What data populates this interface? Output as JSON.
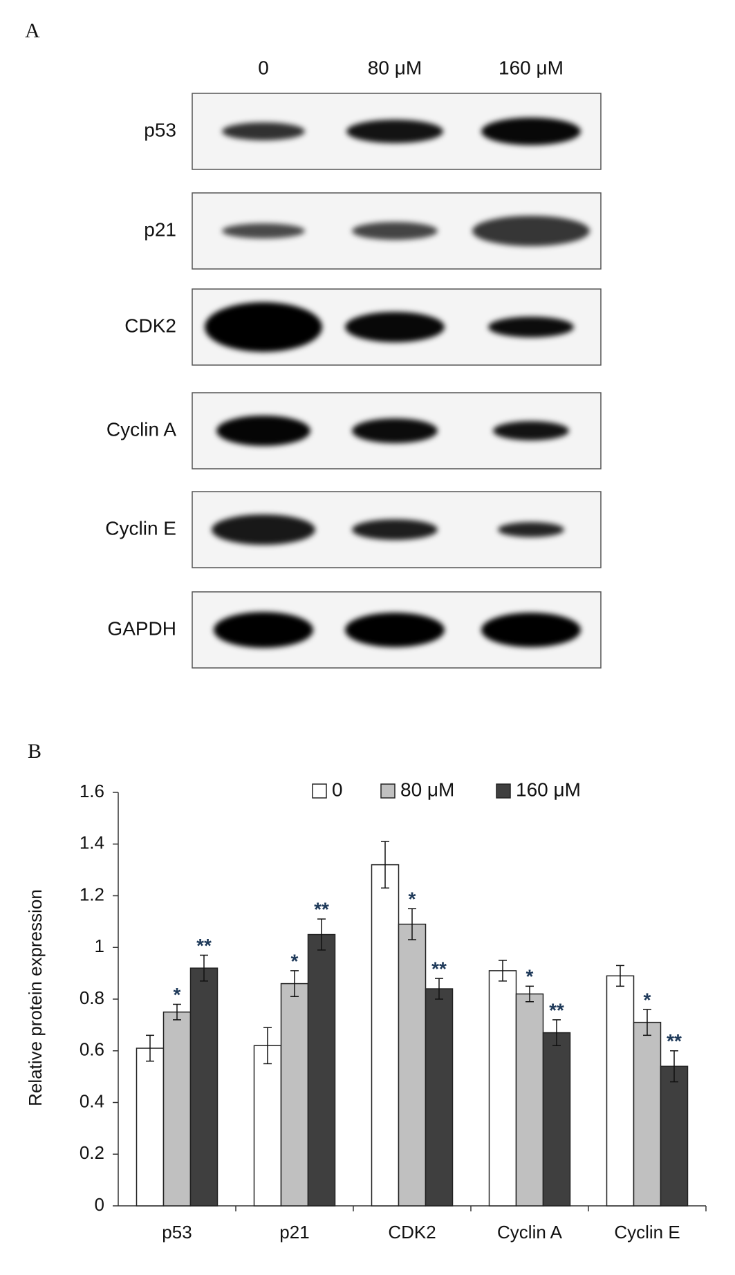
{
  "panel_labels": [
    "A",
    "B"
  ],
  "blot": {
    "lanes": [
      "0",
      "80 μM",
      "160 μM"
    ],
    "rows": [
      "p53",
      "p21",
      "CDK2",
      "Cyclin A",
      "Cyclin E",
      "GAPDH"
    ]
  },
  "chart_data": {
    "type": "bar",
    "y_label": "Relative protein expression",
    "categories": [
      "p53",
      "p21",
      "CDK2",
      "Cyclin A",
      "Cyclin E"
    ],
    "series": [
      {
        "name": "0",
        "color": "#ffffff",
        "values": [
          0.61,
          0.62,
          1.32,
          0.91,
          0.89
        ],
        "errors": [
          0.05,
          0.07,
          0.09,
          0.04,
          0.04
        ]
      },
      {
        "name": "80 μM",
        "color": "#c0c0c0",
        "values": [
          0.75,
          0.86,
          1.09,
          0.82,
          0.71
        ],
        "errors": [
          0.03,
          0.05,
          0.06,
          0.03,
          0.05
        ],
        "annotations": [
          "*",
          "*",
          "*",
          "*",
          "*"
        ]
      },
      {
        "name": "160 μM",
        "color": "#3f3f3f",
        "values": [
          0.92,
          1.05,
          0.84,
          0.67,
          0.54
        ],
        "errors": [
          0.05,
          0.06,
          0.04,
          0.05,
          0.06
        ],
        "annotations": [
          "**",
          "**",
          "**",
          "**",
          "**"
        ]
      }
    ],
    "ylim": [
      0,
      1.6
    ],
    "yticks": [
      0,
      0.2,
      0.4,
      0.6,
      0.8,
      1,
      1.2,
      1.4,
      1.6
    ],
    "grid": false,
    "legend": "top"
  }
}
